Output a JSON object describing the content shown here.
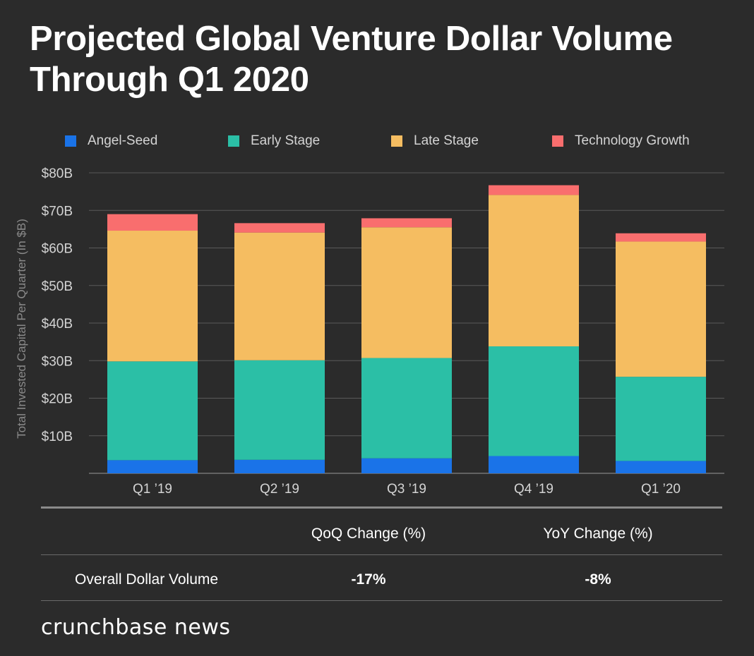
{
  "title_line1": "Projected Global Venture Dollar Volume",
  "title_line2": "Through Q1 2020",
  "chart_data": {
    "type": "bar",
    "stacked": true,
    "categories": [
      "Q1 ’19",
      "Q2 ’19",
      "Q3 ’19",
      "Q4 ’19",
      "Q1 ’20"
    ],
    "series": [
      {
        "name": "Angel-Seed",
        "color": "#1a73e8",
        "values": [
          3.5,
          3.6,
          4.0,
          4.6,
          3.3
        ]
      },
      {
        "name": "Early Stage",
        "color": "#2bbfa6",
        "values": [
          26.3,
          26.5,
          26.7,
          29.2,
          22.4
        ]
      },
      {
        "name": "Late Stage",
        "color": "#f5bd61",
        "values": [
          34.8,
          34.0,
          34.8,
          40.3,
          36.0
        ]
      },
      {
        "name": "Technology Growth",
        "color": "#f96e6e",
        "values": [
          4.4,
          2.5,
          2.4,
          2.6,
          2.2
        ]
      }
    ],
    "ylabel": "Total Invested Capital Per Quarter (In $B)",
    "ylim": [
      0,
      80
    ],
    "yticks": [
      10,
      20,
      30,
      40,
      50,
      60,
      70,
      80
    ],
    "ytick_labels": [
      "$10B",
      "$20B",
      "$30B",
      "$40B",
      "$50B",
      "$60B",
      "$70B",
      "$80B"
    ],
    "grid": true,
    "legend_position": "top"
  },
  "table": {
    "headers": [
      "QoQ Change (%)",
      "YoY Change (%)"
    ],
    "row_label": "Overall Dollar Volume",
    "values": [
      "-17%",
      "-8%"
    ]
  },
  "brand": "crunchbase news",
  "colors": {
    "background": "#2b2b2b",
    "gridline": "#5a5a5a",
    "axis_text": "#d4d4d4",
    "ylabel_text": "#8a8a8a"
  }
}
